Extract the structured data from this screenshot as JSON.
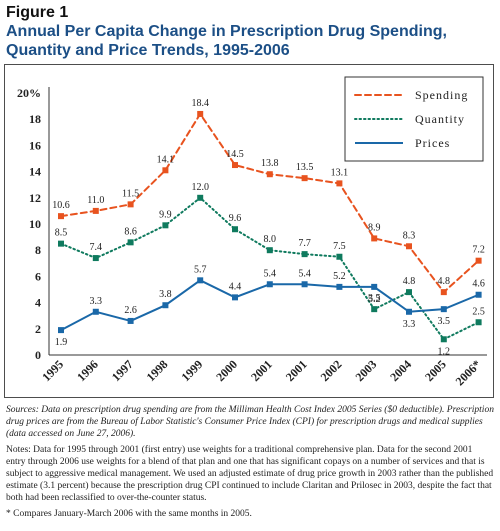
{
  "figure": {
    "label": "Figure 1",
    "title": "Annual Per Capita Change in Prescription Drug Spending, Quantity and Price Trends, 1995-2006"
  },
  "chart_data": {
    "type": "line",
    "categories": [
      "1995",
      "1996",
      "1997",
      "1998",
      "1999",
      "2000",
      "2001",
      "2001",
      "2002",
      "2003",
      "2004",
      "2005",
      "2006*"
    ],
    "ylim": [
      0,
      20
    ],
    "yticks": [
      "0",
      "2",
      "4",
      "6",
      "8",
      "10",
      "12",
      "14",
      "16",
      "18",
      "20%"
    ],
    "ytick_values": [
      0,
      2,
      4,
      6,
      8,
      10,
      12,
      14,
      16,
      18,
      20
    ],
    "grid": false,
    "legend": "top-right",
    "series": [
      {
        "name": "Spending",
        "color": "#e8531f",
        "style": "dashed",
        "values": [
          10.6,
          11.0,
          11.5,
          14.1,
          18.4,
          14.5,
          13.8,
          13.5,
          13.1,
          8.9,
          8.3,
          4.8,
          7.2
        ],
        "labels": [
          "10.6",
          "11.0",
          "11.5",
          "14.1",
          "18.4",
          "14.5",
          "13.8",
          "13.5",
          "13.1",
          "8.9",
          "8.3",
          "4.8",
          "7.2"
        ]
      },
      {
        "name": "Quantity",
        "color": "#0f7a5e",
        "style": "dotted",
        "values": [
          8.5,
          7.4,
          8.6,
          9.9,
          12.0,
          9.6,
          8.0,
          7.7,
          7.5,
          3.5,
          4.8,
          1.2,
          2.5
        ],
        "labels": [
          "8.5",
          "7.4",
          "8.6",
          "9.9",
          "12.0",
          "9.6",
          "8.0",
          "7.7",
          "7.5",
          "3.5",
          "4.8",
          "1.2",
          "2.5"
        ]
      },
      {
        "name": "Prices",
        "color": "#1a68a8",
        "style": "solid",
        "values": [
          1.9,
          3.3,
          2.6,
          3.8,
          5.7,
          4.4,
          5.4,
          5.4,
          5.2,
          5.2,
          3.3,
          3.5,
          4.6
        ],
        "labels": [
          "1.9",
          "3.3",
          "2.6",
          "3.8",
          "5.7",
          "4.4",
          "5.4",
          "5.4",
          "5.2",
          "5.2",
          "3.3",
          "3.5",
          "4.6"
        ]
      }
    ]
  },
  "notes": {
    "sources": "Sources: Data on prescription drug spending are from the Milliman Health Cost Index 2005 Series ($0 deductible). Prescription drug prices are from the Bureau of Labor Statistic's Consumer Price Index (CPI) for prescription drugs and medical supplies (data accessed on June 27, 2006).",
    "notes": "Notes: Data for 1995 through 2001 (first entry) use weights for a traditional comprehensive plan. Data for the second 2001 entry through 2006 use weights for a blend of that plan and one that has significant copays on a number of services and that is subject to aggressive medical management. We used an adjusted estimate of drug price growth in 2003 rather than the published estimate (3.1 percent) because the prescription drug CPI continued to include Claritan and Prilosec in 2003, despite the fact that both had been reclassified to over-the-counter status.",
    "footnote": "* Compares January-March 2006 with the same months in 2005."
  }
}
